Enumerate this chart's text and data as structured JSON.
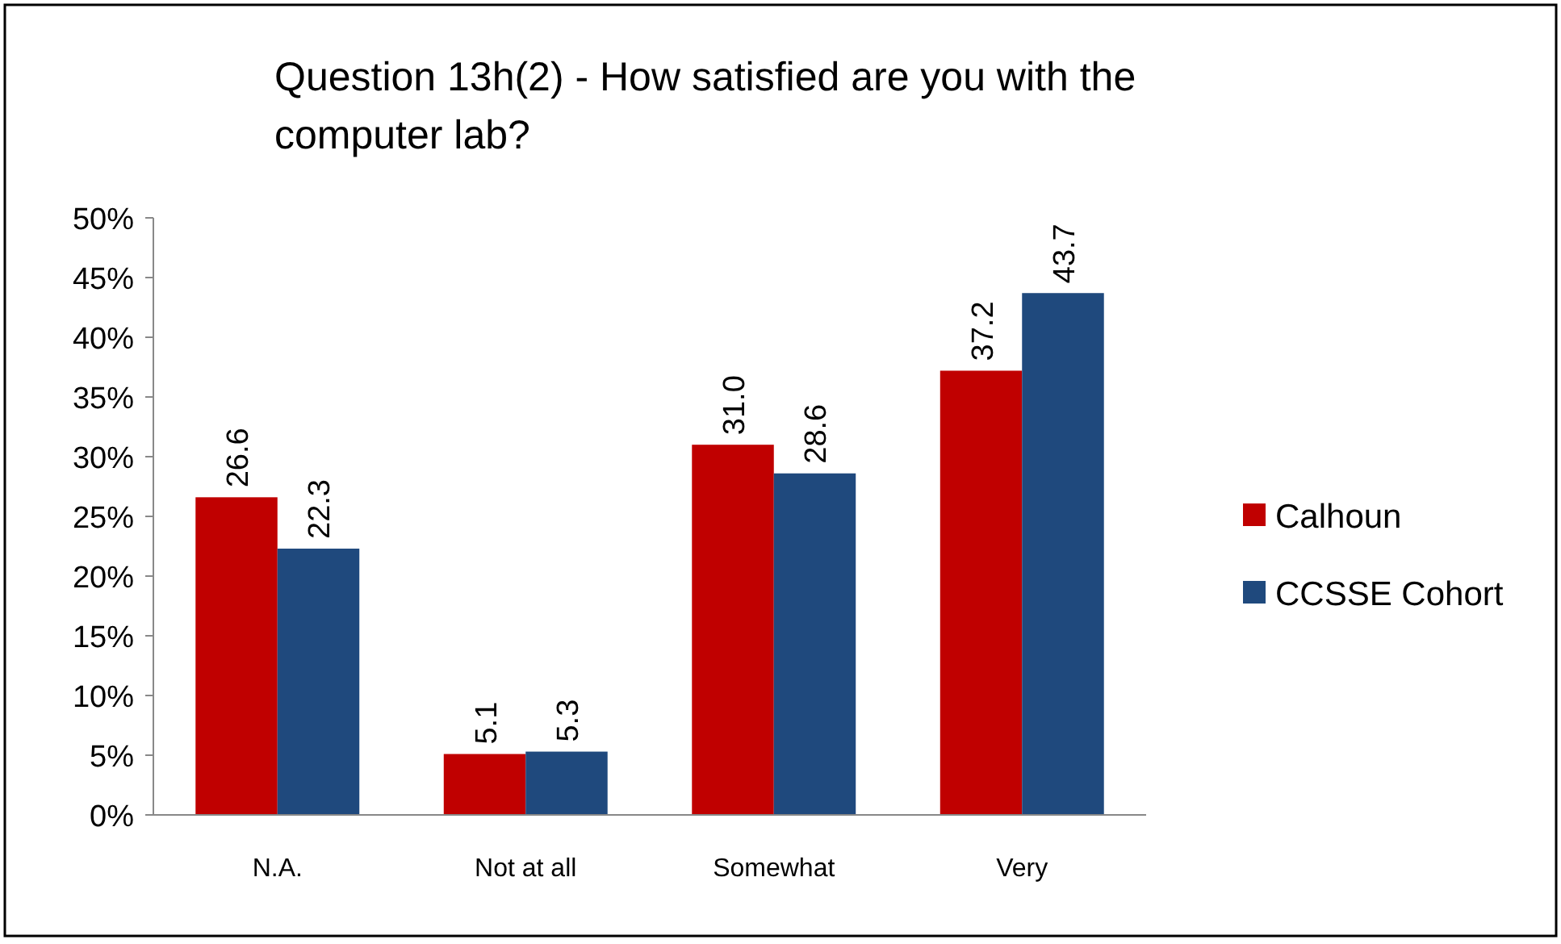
{
  "chart_data": {
    "type": "bar",
    "title": "Question 13h(2) - How satisfied are you with the computer lab?",
    "categories": [
      "N.A.",
      "Not at all",
      "Somewhat",
      "Very"
    ],
    "series": [
      {
        "name": "Calhoun",
        "color": "#c00000",
        "values": [
          26.6,
          5.1,
          31.0,
          37.2
        ],
        "value_labels": [
          "26.6",
          "5.1",
          "31.0",
          "37.2"
        ]
      },
      {
        "name": "CCSSE Cohort",
        "color": "#1f497d",
        "values": [
          22.3,
          5.3,
          28.6,
          43.7
        ],
        "value_labels": [
          "22.3",
          "5.3",
          "28.6",
          "43.7"
        ]
      }
    ],
    "ylim": [
      0,
      50
    ],
    "yticks": [
      {
        "value": 0,
        "label": "0%"
      },
      {
        "value": 5,
        "label": "5%"
      },
      {
        "value": 10,
        "label": "10%"
      },
      {
        "value": 15,
        "label": "15%"
      },
      {
        "value": 20,
        "label": "20%"
      },
      {
        "value": 25,
        "label": "25%"
      },
      {
        "value": 30,
        "label": "30%"
      },
      {
        "value": 35,
        "label": "35%"
      },
      {
        "value": 40,
        "label": "40%"
      },
      {
        "value": 45,
        "label": "45%"
      },
      {
        "value": 50,
        "label": "50%"
      }
    ],
    "legend": "right"
  }
}
